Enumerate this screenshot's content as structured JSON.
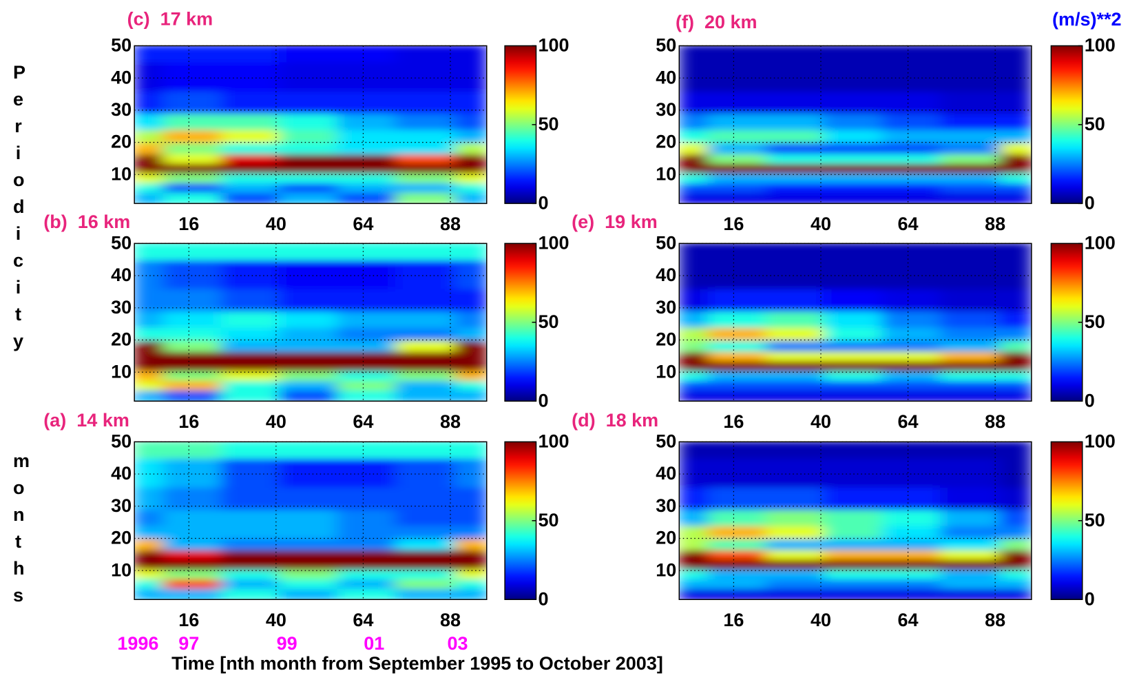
{
  "figure": {
    "ylabel_top": "Periodicity",
    "ylabel_bottom": "months",
    "xlabel": "Time [nth month from September 1995 to October 2003]",
    "units": "(m/s)**2",
    "units_color": "#0000ff",
    "title_color": "#e8247c",
    "year_color": "#ff00ff"
  },
  "chart_data": [
    {
      "type": "heatmap",
      "title": "(c)  17 km",
      "colormap": "jet",
      "grid": true,
      "x": [
        1,
        17,
        33,
        49,
        65,
        81,
        98
      ],
      "y": [
        3,
        6,
        9,
        12,
        15,
        18,
        22,
        26,
        32,
        40,
        50
      ],
      "z": [
        [
          30,
          40,
          20,
          30,
          20,
          50,
          30
        ],
        [
          40,
          20,
          30,
          20,
          30,
          30,
          40
        ],
        [
          60,
          50,
          40,
          40,
          40,
          50,
          60
        ],
        [
          100,
          100,
          100,
          100,
          100,
          100,
          100
        ],
        [
          100,
          60,
          90,
          100,
          100,
          80,
          100
        ],
        [
          70,
          50,
          40,
          40,
          35,
          35,
          55
        ],
        [
          55,
          70,
          60,
          45,
          35,
          35,
          30
        ],
        [
          35,
          45,
          45,
          40,
          30,
          25,
          20
        ],
        [
          15,
          20,
          15,
          15,
          15,
          15,
          15
        ],
        [
          10,
          12,
          12,
          10,
          10,
          10,
          10
        ],
        [
          15,
          15,
          15,
          12,
          12,
          10,
          10
        ]
      ],
      "xlim": [
        1,
        98
      ],
      "ylim": [
        1,
        50
      ],
      "xticks": [
        16,
        40,
        64,
        88
      ],
      "yticks": [
        10,
        20,
        30,
        40,
        50
      ],
      "zlim": [
        0,
        100
      ],
      "zticks": [
        0,
        50,
        100
      ]
    },
    {
      "type": "heatmap",
      "title": "(b)  16 km",
      "colormap": "jet",
      "grid": true,
      "x": [
        1,
        17,
        33,
        49,
        65,
        81,
        98
      ],
      "y": [
        3,
        6,
        9,
        12,
        15,
        18,
        22,
        26,
        32,
        40,
        50
      ],
      "z": [
        [
          30,
          20,
          40,
          20,
          40,
          30,
          30
        ],
        [
          60,
          70,
          40,
          30,
          50,
          30,
          40
        ],
        [
          70,
          50,
          60,
          50,
          40,
          50,
          70
        ],
        [
          100,
          100,
          100,
          100,
          100,
          100,
          100
        ],
        [
          100,
          100,
          100,
          100,
          100,
          100,
          100
        ],
        [
          100,
          50,
          30,
          30,
          30,
          60,
          100
        ],
        [
          40,
          40,
          35,
          30,
          25,
          25,
          30
        ],
        [
          30,
          35,
          40,
          35,
          30,
          30,
          25
        ],
        [
          25,
          25,
          20,
          15,
          15,
          15,
          15
        ],
        [
          25,
          20,
          15,
          12,
          12,
          15,
          20
        ],
        [
          40,
          40,
          40,
          40,
          40,
          40,
          40
        ]
      ],
      "xlim": [
        1,
        98
      ],
      "ylim": [
        1,
        50
      ],
      "xticks": [
        16,
        40,
        64,
        88
      ],
      "yticks": [
        10,
        20,
        30,
        40,
        50
      ],
      "zlim": [
        0,
        100
      ],
      "zticks": [
        0,
        50,
        100
      ]
    },
    {
      "type": "heatmap",
      "title": "(a)  14 km",
      "colormap": "jet",
      "grid": true,
      "x": [
        1,
        17,
        33,
        49,
        65,
        81,
        98
      ],
      "y": [
        3,
        6,
        9,
        12,
        15,
        18,
        22,
        26,
        32,
        40,
        50
      ],
      "z": [
        [
          30,
          30,
          40,
          30,
          40,
          30,
          30
        ],
        [
          40,
          80,
          30,
          40,
          30,
          50,
          40
        ],
        [
          60,
          50,
          40,
          50,
          40,
          40,
          60
        ],
        [
          100,
          100,
          100,
          100,
          100,
          100,
          100
        ],
        [
          100,
          90,
          100,
          100,
          100,
          100,
          100
        ],
        [
          70,
          30,
          25,
          25,
          25,
          35,
          70
        ],
        [
          30,
          30,
          30,
          30,
          25,
          25,
          25
        ],
        [
          25,
          30,
          30,
          30,
          25,
          20,
          20
        ],
        [
          30,
          25,
          20,
          20,
          20,
          20,
          20
        ],
        [
          35,
          30,
          20,
          15,
          15,
          20,
          25
        ],
        [
          45,
          45,
          40,
          40,
          40,
          40,
          40
        ]
      ],
      "xlim": [
        1,
        98
      ],
      "ylim": [
        1,
        50
      ],
      "xticks": [
        16,
        40,
        64,
        88
      ],
      "yticks": [
        10,
        20,
        30,
        40,
        50
      ],
      "x2ticks": [
        {
          "value": 2,
          "label": "1996"
        },
        {
          "value": 16,
          "label": "97"
        },
        {
          "value": 43,
          "label": "99"
        },
        {
          "value": 67,
          "label": "01"
        },
        {
          "value": 90,
          "label": "03"
        }
      ],
      "zlim": [
        0,
        100
      ],
      "zticks": [
        0,
        50,
        100
      ]
    },
    {
      "type": "heatmap",
      "title": "(f)  20 km",
      "colormap": "jet",
      "grid": true,
      "x": [
        1,
        17,
        33,
        49,
        65,
        81,
        98
      ],
      "y": [
        3,
        6,
        9,
        12,
        15,
        18,
        22,
        26,
        32,
        40,
        50
      ],
      "z": [
        [
          10,
          10,
          10,
          10,
          10,
          10,
          10
        ],
        [
          20,
          20,
          15,
          15,
          15,
          20,
          20
        ],
        [
          40,
          30,
          30,
          30,
          30,
          30,
          40
        ],
        [
          100,
          100,
          100,
          100,
          100,
          100,
          100
        ],
        [
          100,
          50,
          40,
          40,
          40,
          50,
          100
        ],
        [
          60,
          30,
          20,
          20,
          20,
          25,
          60
        ],
        [
          40,
          45,
          45,
          35,
          30,
          30,
          30
        ],
        [
          25,
          30,
          30,
          25,
          20,
          15,
          15
        ],
        [
          10,
          10,
          10,
          10,
          10,
          8,
          8
        ],
        [
          5,
          5,
          5,
          5,
          5,
          5,
          5
        ],
        [
          5,
          5,
          5,
          5,
          5,
          5,
          5
        ]
      ],
      "xlim": [
        1,
        98
      ],
      "ylim": [
        1,
        50
      ],
      "xticks": [
        16,
        40,
        64,
        88
      ],
      "yticks": [
        10,
        20,
        30,
        40,
        50
      ],
      "zlim": [
        0,
        100
      ],
      "zticks": [
        0,
        50,
        100
      ]
    },
    {
      "type": "heatmap",
      "title": "(e)  19 km",
      "colormap": "jet",
      "grid": true,
      "x": [
        1,
        17,
        33,
        49,
        65,
        81,
        98
      ],
      "y": [
        3,
        6,
        9,
        12,
        15,
        18,
        22,
        26,
        32,
        40,
        50
      ],
      "z": [
        [
          10,
          10,
          10,
          10,
          10,
          10,
          10
        ],
        [
          20,
          20,
          20,
          20,
          20,
          20,
          20
        ],
        [
          40,
          30,
          30,
          40,
          30,
          40,
          40
        ],
        [
          100,
          100,
          100,
          100,
          100,
          100,
          100
        ],
        [
          100,
          70,
          60,
          60,
          60,
          70,
          100
        ],
        [
          50,
          40,
          25,
          25,
          25,
          30,
          45
        ],
        [
          55,
          70,
          60,
          40,
          30,
          25,
          25
        ],
        [
          30,
          40,
          45,
          35,
          25,
          20,
          15
        ],
        [
          10,
          15,
          15,
          12,
          10,
          8,
          8
        ],
        [
          5,
          5,
          5,
          5,
          5,
          5,
          5
        ],
        [
          5,
          5,
          5,
          5,
          5,
          5,
          5
        ]
      ],
      "xlim": [
        1,
        98
      ],
      "ylim": [
        1,
        50
      ],
      "xticks": [
        16,
        40,
        64,
        88
      ],
      "yticks": [
        10,
        20,
        30,
        40,
        50
      ],
      "zlim": [
        0,
        100
      ],
      "zticks": [
        0,
        50,
        100
      ]
    },
    {
      "type": "heatmap",
      "title": "(d)  18 km",
      "colormap": "jet",
      "grid": true,
      "x": [
        1,
        17,
        33,
        49,
        65,
        81,
        98
      ],
      "y": [
        3,
        6,
        9,
        12,
        15,
        18,
        22,
        26,
        32,
        40,
        50
      ],
      "z": [
        [
          10,
          10,
          10,
          10,
          10,
          10,
          10
        ],
        [
          30,
          30,
          25,
          25,
          25,
          30,
          30
        ],
        [
          40,
          30,
          30,
          40,
          40,
          30,
          40
        ],
        [
          100,
          100,
          100,
          100,
          100,
          100,
          100
        ],
        [
          100,
          80,
          60,
          70,
          70,
          60,
          100
        ],
        [
          55,
          45,
          30,
          30,
          30,
          35,
          50
        ],
        [
          55,
          70,
          60,
          45,
          35,
          25,
          25
        ],
        [
          30,
          45,
          50,
          45,
          40,
          30,
          20
        ],
        [
          15,
          20,
          20,
          15,
          15,
          10,
          8
        ],
        [
          8,
          8,
          8,
          8,
          8,
          8,
          5
        ],
        [
          5,
          5,
          5,
          5,
          5,
          5,
          5
        ]
      ],
      "xlim": [
        1,
        98
      ],
      "ylim": [
        1,
        50
      ],
      "xticks": [
        16,
        40,
        64,
        88
      ],
      "yticks": [
        10,
        20,
        30,
        40,
        50
      ],
      "zlim": [
        0,
        100
      ],
      "zticks": [
        0,
        50,
        100
      ]
    }
  ]
}
